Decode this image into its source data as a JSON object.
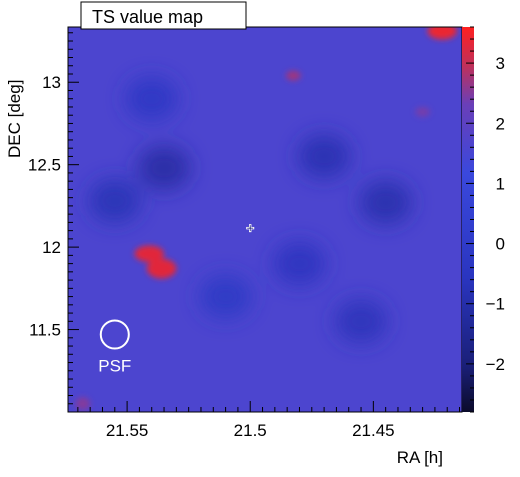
{
  "chart_data": {
    "type": "heatmap",
    "title": "TS value map",
    "xlabel": "RA [h]",
    "ylabel": "DEC [deg]",
    "xlim": [
      21.574,
      21.414
    ],
    "ylim": [
      11.0,
      13.335
    ],
    "x_reversed": true,
    "x_ticks": [
      {
        "value": 21.55,
        "label": "21.55"
      },
      {
        "value": 21.5,
        "label": "21.5"
      },
      {
        "value": 21.45,
        "label": "21.45"
      }
    ],
    "y_ticks": [
      {
        "value": 11.5,
        "label": "11.5"
      },
      {
        "value": 12.0,
        "label": "12"
      },
      {
        "value": 12.5,
        "label": "12.5"
      },
      {
        "value": 13.0,
        "label": "13"
      }
    ],
    "colorbar": {
      "range": [
        -2.8,
        3.6
      ],
      "ticks": [
        {
          "value": 3,
          "label": "3"
        },
        {
          "value": 2,
          "label": "2"
        },
        {
          "value": 1,
          "label": "1"
        },
        {
          "value": 0,
          "label": "0"
        },
        {
          "value": -1,
          "label": "−1"
        },
        {
          "value": -2,
          "label": "−2"
        }
      ],
      "colors": [
        "#0b0b2a",
        "#1a1f78",
        "#2a35c0",
        "#3a48dd",
        "#6a3fb8",
        "#c0305a",
        "#ff2020"
      ]
    },
    "background_ts": 1.6,
    "hotspots": [
      {
        "ra": 21.422,
        "dec": 13.31,
        "ts": 3.4,
        "sigma_ra": 0.006,
        "sigma_dec": 0.05
      },
      {
        "ra": 21.541,
        "dec": 11.96,
        "ts": 3.3,
        "sigma_ra": 0.006,
        "sigma_dec": 0.05
      },
      {
        "ra": 21.536,
        "dec": 11.87,
        "ts": 3.3,
        "sigma_ra": 0.006,
        "sigma_dec": 0.06
      },
      {
        "ra": 21.4825,
        "dec": 13.04,
        "ts": 2.7,
        "sigma_ra": 0.003,
        "sigma_dec": 0.03
      },
      {
        "ra": 21.568,
        "dec": 11.05,
        "ts": 2.5,
        "sigma_ra": 0.003,
        "sigma_dec": 0.04
      },
      {
        "ra": 21.43,
        "dec": 12.82,
        "ts": 2.4,
        "sigma_ra": 0.003,
        "sigma_dec": 0.03
      }
    ],
    "lowspots": [
      {
        "ra": 21.535,
        "dec": 12.48,
        "ts": -1.2
      },
      {
        "ra": 21.555,
        "dec": 12.28,
        "ts": -0.8
      },
      {
        "ra": 21.47,
        "dec": 12.55,
        "ts": -0.9
      },
      {
        "ra": 21.445,
        "dec": 12.27,
        "ts": -1.0
      },
      {
        "ra": 21.48,
        "dec": 11.9,
        "ts": -0.6
      },
      {
        "ra": 21.54,
        "dec": 12.9,
        "ts": -0.4
      },
      {
        "ra": 21.455,
        "dec": 11.55,
        "ts": -0.7
      },
      {
        "ra": 21.51,
        "dec": 11.7,
        "ts": -0.3
      }
    ],
    "markers": [
      {
        "type": "cross",
        "ra": 21.5,
        "dec": 12.115
      },
      {
        "type": "psf-circle",
        "ra": 21.555,
        "dec": 11.47,
        "radius_deg": 0.085,
        "label": "PSF"
      }
    ]
  }
}
